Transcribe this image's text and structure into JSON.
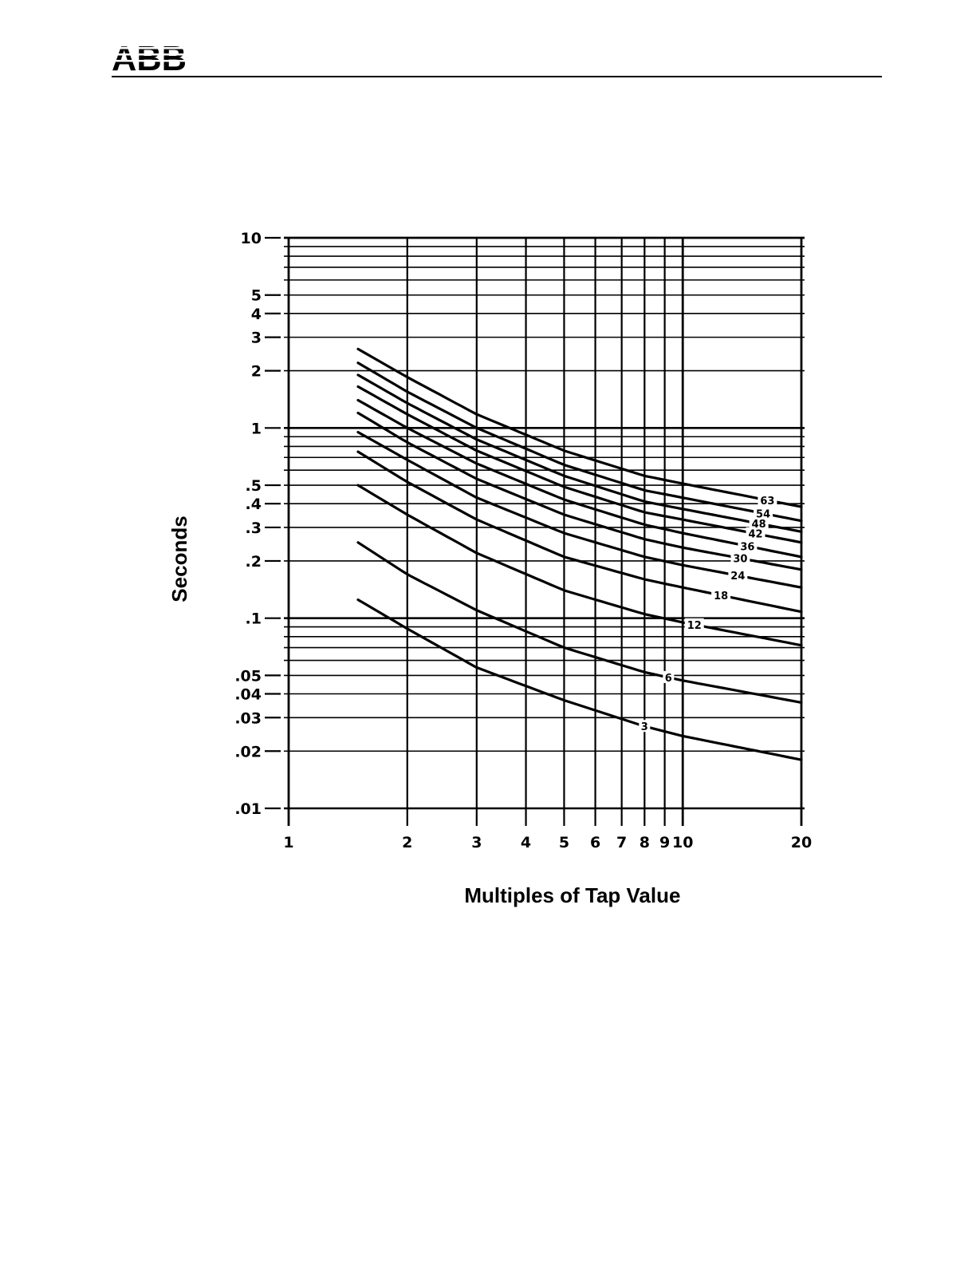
{
  "header": {
    "logo_text": "ABB",
    "logo_color": "#000000"
  },
  "chart_data": {
    "type": "line",
    "xscale": "log",
    "yscale": "log",
    "xlim": [
      1,
      20
    ],
    "ylim": [
      0.01,
      10
    ],
    "xlabel": "Multiples of Tap Value",
    "ylabel": "Seconds",
    "grid": true,
    "x_ticks": [
      {
        "value": 1,
        "label": "1"
      },
      {
        "value": 2,
        "label": "2"
      },
      {
        "value": 3,
        "label": "3"
      },
      {
        "value": 4,
        "label": "4"
      },
      {
        "value": 5,
        "label": "5"
      },
      {
        "value": 6,
        "label": "6"
      },
      {
        "value": 7,
        "label": "7"
      },
      {
        "value": 8,
        "label": "8"
      },
      {
        "value": 9,
        "label": "9"
      },
      {
        "value": 10,
        "label": "10"
      },
      {
        "value": 20,
        "label": "20"
      }
    ],
    "y_ticks": [
      {
        "value": 10,
        "label": "10"
      },
      {
        "value": 5,
        "label": "5"
      },
      {
        "value": 4,
        "label": "4"
      },
      {
        "value": 3,
        "label": "3"
      },
      {
        "value": 2,
        "label": "2"
      },
      {
        "value": 1,
        "label": "1"
      },
      {
        "value": 0.5,
        "label": ".5"
      },
      {
        "value": 0.4,
        "label": ".4"
      },
      {
        "value": 0.3,
        "label": ".3"
      },
      {
        "value": 0.2,
        "label": ".2"
      },
      {
        "value": 0.1,
        "label": ".1"
      },
      {
        "value": 0.05,
        "label": ".05"
      },
      {
        "value": 0.04,
        "label": ".04"
      },
      {
        "value": 0.03,
        "label": ".03"
      },
      {
        "value": 0.02,
        "label": ".02"
      },
      {
        "value": 0.01,
        "label": ".01"
      }
    ],
    "series": [
      {
        "name": "3",
        "x": [
          1.5,
          2,
          3,
          5,
          8,
          10,
          20
        ],
        "y": [
          0.125,
          0.088,
          0.055,
          0.037,
          0.027,
          0.024,
          0.018
        ],
        "label_x": 8.0
      },
      {
        "name": "6",
        "x": [
          1.5,
          2,
          3,
          5,
          8,
          10,
          20
        ],
        "y": [
          0.25,
          0.17,
          0.11,
          0.07,
          0.052,
          0.047,
          0.036
        ],
        "label_x": 9.2
      },
      {
        "name": "12",
        "x": [
          1.5,
          2,
          3,
          5,
          8,
          10,
          20
        ],
        "y": [
          0.5,
          0.35,
          0.22,
          0.14,
          0.105,
          0.095,
          0.072
        ],
        "label_x": 10.7
      },
      {
        "name": "18",
        "x": [
          1.5,
          2,
          3,
          5,
          8,
          10,
          20
        ],
        "y": [
          0.75,
          0.52,
          0.33,
          0.21,
          0.16,
          0.145,
          0.108
        ],
        "label_x": 12.5
      },
      {
        "name": "24",
        "x": [
          1.5,
          2,
          3,
          5,
          8,
          10,
          20
        ],
        "y": [
          0.95,
          0.68,
          0.43,
          0.28,
          0.21,
          0.19,
          0.145
        ],
        "label_x": 13.8
      },
      {
        "name": "30",
        "x": [
          1.5,
          2,
          3,
          5,
          8,
          10,
          20
        ],
        "y": [
          1.2,
          0.84,
          0.54,
          0.35,
          0.26,
          0.235,
          0.18
        ],
        "label_x": 14.0
      },
      {
        "name": "36",
        "x": [
          1.5,
          2,
          3,
          5,
          8,
          10,
          20
        ],
        "y": [
          1.4,
          1.0,
          0.65,
          0.42,
          0.31,
          0.28,
          0.21
        ],
        "label_x": 14.6
      },
      {
        "name": "42",
        "x": [
          1.5,
          2,
          3,
          5,
          8,
          10,
          20
        ],
        "y": [
          1.65,
          1.18,
          0.76,
          0.49,
          0.36,
          0.33,
          0.25
        ],
        "label_x": 15.3
      },
      {
        "name": "48",
        "x": [
          1.5,
          2,
          3,
          5,
          8,
          10,
          20
        ],
        "y": [
          1.9,
          1.35,
          0.87,
          0.56,
          0.41,
          0.375,
          0.285
        ],
        "label_x": 15.6
      },
      {
        "name": "54",
        "x": [
          1.5,
          2,
          3,
          5,
          8,
          10,
          20
        ],
        "y": [
          2.2,
          1.55,
          1.0,
          0.64,
          0.47,
          0.43,
          0.325
        ],
        "label_x": 16.0
      },
      {
        "name": "63",
        "x": [
          1.5,
          2,
          3,
          5,
          8,
          10,
          20
        ],
        "y": [
          2.6,
          1.85,
          1.18,
          0.76,
          0.56,
          0.51,
          0.385
        ],
        "label_x": 16.4
      }
    ]
  }
}
